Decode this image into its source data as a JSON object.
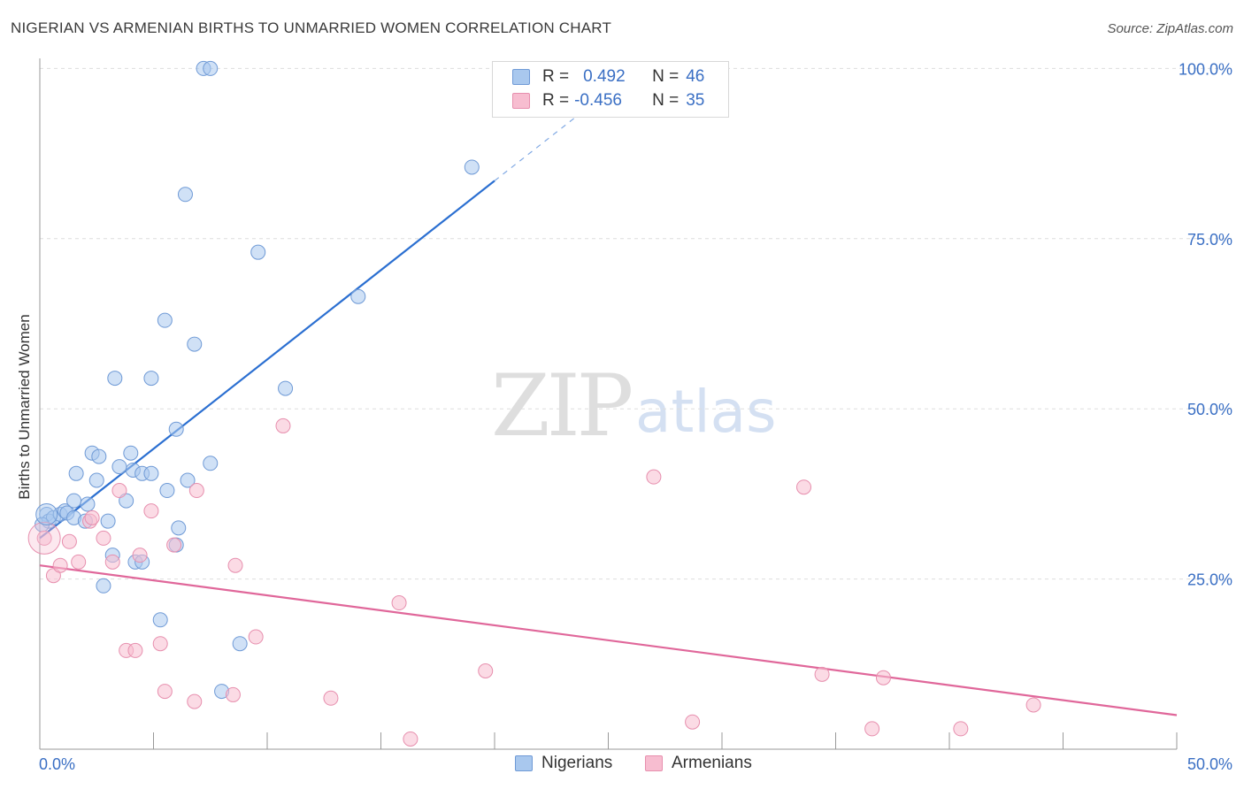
{
  "title": "NIGERIAN VS ARMENIAN BIRTHS TO UNMARRIED WOMEN CORRELATION CHART",
  "source": "Source: ZipAtlas.com",
  "watermark": {
    "zip": "ZIP",
    "atlas": "atlas"
  },
  "colors": {
    "blue_fill": "#a9c8ee",
    "blue_stroke": "#6f9ad6",
    "blue_line": "#2b6fd1",
    "pink_fill": "#f7bdd0",
    "pink_stroke": "#e78fae",
    "pink_line": "#e0679a",
    "tick_label": "#3a6fc4",
    "grid": "#dddddd"
  },
  "stats": [
    {
      "r_label": "R =",
      "r_value": "0.492",
      "n_label": "N =",
      "n_value": "46",
      "series": "Nigerians"
    },
    {
      "r_label": "R =",
      "r_value": "-0.456",
      "n_label": "N =",
      "n_value": "35",
      "series": "Armenians"
    }
  ],
  "legend": [
    {
      "label": "Nigerians"
    },
    {
      "label": "Armenians"
    }
  ],
  "chart_data": {
    "type": "scatter",
    "title": "NIGERIAN VS ARMENIAN BIRTHS TO UNMARRIED WOMEN CORRELATION CHART",
    "xlabel": "",
    "ylabel": "Births to Unmarried Women",
    "xlim": [
      0,
      50
    ],
    "ylim": [
      0,
      102
    ],
    "x_tick_labels": {
      "left": "0.0%",
      "right": "50.0%"
    },
    "y_ticks": [
      {
        "value": 25,
        "label": "25.0%"
      },
      {
        "value": 50,
        "label": "50.0%"
      },
      {
        "value": 75,
        "label": "75.0%"
      },
      {
        "value": 100,
        "label": "100.0%"
      }
    ],
    "series": [
      {
        "name": "Nigerians",
        "color": "#a9c8ee",
        "trend": {
          "x0": 0,
          "y0": 31.0,
          "x1": 20.0,
          "y1": 83.5,
          "dash_to_x": 24.0,
          "dash_to_y": 94.0
        },
        "points": [
          [
            0.3,
            34.5
          ],
          [
            0.4,
            33.5
          ],
          [
            0.6,
            34.0
          ],
          [
            0.9,
            34.5
          ],
          [
            1.1,
            35.0
          ],
          [
            1.2,
            34.7
          ],
          [
            1.5,
            34.0
          ],
          [
            1.5,
            36.5
          ],
          [
            1.6,
            40.5
          ],
          [
            2.0,
            33.5
          ],
          [
            2.1,
            36.0
          ],
          [
            2.3,
            43.5
          ],
          [
            2.5,
            39.5
          ],
          [
            2.6,
            43.0
          ],
          [
            2.8,
            24.0
          ],
          [
            3.0,
            33.5
          ],
          [
            3.2,
            28.5
          ],
          [
            3.3,
            54.5
          ],
          [
            3.5,
            41.5
          ],
          [
            3.8,
            36.5
          ],
          [
            4.0,
            43.5
          ],
          [
            4.1,
            41.0
          ],
          [
            4.2,
            27.5
          ],
          [
            4.5,
            40.5
          ],
          [
            4.5,
            27.5
          ],
          [
            4.9,
            54.5
          ],
          [
            4.9,
            40.5
          ],
          [
            5.3,
            19.0
          ],
          [
            5.5,
            63.0
          ],
          [
            5.6,
            38.0
          ],
          [
            6.0,
            47.0
          ],
          [
            6.1,
            32.5
          ],
          [
            6.4,
            81.5
          ],
          [
            6.5,
            39.5
          ],
          [
            6.8,
            59.5
          ],
          [
            7.2,
            100.0
          ],
          [
            7.5,
            100.0
          ],
          [
            7.5,
            42.0
          ],
          [
            8.0,
            8.5
          ],
          [
            8.8,
            15.5
          ],
          [
            9.6,
            73.0
          ],
          [
            10.8,
            53.0
          ],
          [
            14.0,
            66.5
          ],
          [
            19.0,
            85.5
          ],
          [
            0.1,
            33.0
          ],
          [
            6.0,
            30.0
          ]
        ]
      },
      {
        "name": "Armenians",
        "color": "#f7bdd0",
        "trend": {
          "x0": 0,
          "y0": 27.0,
          "x1": 50.0,
          "y1": 5.0
        },
        "points": [
          [
            0.2,
            31.0
          ],
          [
            0.6,
            25.5
          ],
          [
            0.9,
            27.0
          ],
          [
            1.3,
            30.5
          ],
          [
            1.7,
            27.5
          ],
          [
            2.2,
            33.5
          ],
          [
            2.3,
            34.0
          ],
          [
            2.8,
            31.0
          ],
          [
            3.2,
            27.5
          ],
          [
            3.5,
            38.0
          ],
          [
            3.8,
            14.5
          ],
          [
            4.2,
            14.5
          ],
          [
            4.4,
            28.5
          ],
          [
            4.9,
            35.0
          ],
          [
            5.3,
            15.5
          ],
          [
            5.5,
            8.5
          ],
          [
            5.9,
            30.0
          ],
          [
            6.8,
            7.0
          ],
          [
            6.9,
            38.0
          ],
          [
            8.5,
            8.0
          ],
          [
            8.6,
            27.0
          ],
          [
            9.5,
            16.5
          ],
          [
            10.7,
            47.5
          ],
          [
            12.8,
            7.5
          ],
          [
            15.8,
            21.5
          ],
          [
            16.3,
            1.5
          ],
          [
            19.6,
            11.5
          ],
          [
            27.0,
            40.0
          ],
          [
            28.7,
            4.0
          ],
          [
            33.6,
            38.5
          ],
          [
            34.4,
            11.0
          ],
          [
            36.6,
            3.0
          ],
          [
            37.1,
            10.5
          ],
          [
            40.5,
            3.0
          ],
          [
            43.7,
            6.5
          ]
        ]
      }
    ]
  }
}
